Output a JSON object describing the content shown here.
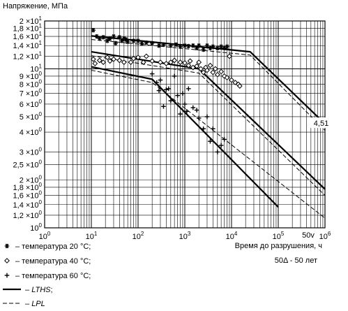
{
  "chart_data": {
    "type": "scatter",
    "ylabel": "Напряжение, МПа",
    "xlabel": "Время до разрушения, ч",
    "x_annotation": "50Δ - 50 лет",
    "x_scale": "log",
    "y_scale": "log",
    "xlim": [
      1,
      1000000
    ],
    "ylim": [
      1,
      20
    ],
    "grid": true,
    "x_ticks": [
      {
        "value": 1,
        "label": "10^0"
      },
      {
        "value": 10,
        "label": "10^1"
      },
      {
        "value": 100,
        "label": "10^2"
      },
      {
        "value": 1000,
        "label": "10^3"
      },
      {
        "value": 10000,
        "label": "10^4"
      },
      {
        "value": 100000,
        "label": "10^5"
      },
      {
        "value": 438000,
        "label": "50v"
      },
      {
        "value": 1000000,
        "label": "10^6"
      }
    ],
    "y_ticks": [
      {
        "value": 20,
        "label": "2 ×10^1"
      },
      {
        "value": 18,
        "label": "1,8 ×10^1"
      },
      {
        "value": 16,
        "label": "1,6 ×10^1"
      },
      {
        "value": 14,
        "label": "1,4 ×10^1"
      },
      {
        "value": 12,
        "label": "1,2 ×10^1"
      },
      {
        "value": 10,
        "label": "10^1"
      },
      {
        "value": 9,
        "label": "9 ×10^0"
      },
      {
        "value": 8,
        "label": "8 ×10^0"
      },
      {
        "value": 7,
        "label": "7 ×10^0"
      },
      {
        "value": 6,
        "label": "6 ×10^0"
      },
      {
        "value": 5,
        "label": "5 ×10^0"
      },
      {
        "value": 4,
        "label": "4 ×10^0"
      },
      {
        "value": 3,
        "label": "3 ×10^0"
      },
      {
        "value": 2.5,
        "label": "2,5 ×10^0"
      },
      {
        "value": 2,
        "label": "2 ×10^0"
      },
      {
        "value": 1.8,
        "label": "1,8 ×10^0"
      },
      {
        "value": 1.6,
        "label": "1,6 ×10^0"
      },
      {
        "value": 1.4,
        "label": "1,4 ×10^0"
      },
      {
        "value": 1.2,
        "label": "1,2 ×10^0"
      },
      {
        "value": 1,
        "label": "10^0"
      }
    ],
    "annotations": [
      {
        "text": "4,51",
        "x": 800000,
        "y": 4.51
      }
    ],
    "legend": [
      {
        "marker": "*",
        "label": "– температура 20 °С;"
      },
      {
        "marker": "◇",
        "label": "– температура 40 °С;"
      },
      {
        "marker": "+",
        "label": "– температура 60 °С;"
      },
      {
        "style": "solid",
        "label": "– LTHS;",
        "italic_part": "LTHS"
      },
      {
        "style": "dashed",
        "label": "– LPL",
        "italic_part": "LPL"
      }
    ],
    "series": [
      {
        "name": "температура 20 °С",
        "marker": "star",
        "points": [
          [
            11,
            17.5
          ],
          [
            13,
            16
          ],
          [
            15,
            15.5
          ],
          [
            18,
            15.8
          ],
          [
            22,
            15
          ],
          [
            25,
            15.5
          ],
          [
            30,
            16
          ],
          [
            33,
            14.5
          ],
          [
            40,
            15.8
          ],
          [
            45,
            15
          ],
          [
            50,
            15.5
          ],
          [
            55,
            15.3
          ],
          [
            60,
            14.8
          ],
          [
            80,
            15
          ],
          [
            100,
            15
          ],
          [
            120,
            14.4
          ],
          [
            150,
            14.6
          ],
          [
            200,
            14.5
          ],
          [
            280,
            14
          ],
          [
            350,
            14.2
          ],
          [
            500,
            14
          ],
          [
            650,
            14.2
          ],
          [
            800,
            13.8
          ],
          [
            1000,
            14
          ],
          [
            1200,
            13.9
          ],
          [
            1500,
            14
          ],
          [
            1800,
            13.5
          ],
          [
            2000,
            14
          ],
          [
            2500,
            13.2
          ],
          [
            3000,
            14
          ],
          [
            3500,
            13.5
          ],
          [
            4000,
            13.8
          ],
          [
            5000,
            13.5
          ],
          [
            6000,
            13.8
          ],
          [
            7000,
            13.5
          ],
          [
            8000,
            13.8
          ]
        ]
      },
      {
        "name": "температура 40 °С",
        "marker": "diamond",
        "points": [
          [
            11,
            11.5
          ],
          [
            12,
            10.8
          ],
          [
            15,
            11.3
          ],
          [
            18,
            11
          ],
          [
            22,
            11.8
          ],
          [
            25,
            11.2
          ],
          [
            30,
            11.5
          ],
          [
            40,
            11.3
          ],
          [
            50,
            11
          ],
          [
            70,
            11
          ],
          [
            80,
            11.6
          ],
          [
            100,
            11.8
          ],
          [
            130,
            11
          ],
          [
            150,
            12
          ],
          [
            200,
            11.2
          ],
          [
            300,
            11
          ],
          [
            400,
            10.8
          ],
          [
            500,
            11
          ],
          [
            600,
            11.3
          ],
          [
            800,
            11
          ],
          [
            1000,
            10.9
          ],
          [
            1200,
            10.5
          ],
          [
            1300,
            11.2
          ],
          [
            1500,
            10.2
          ],
          [
            1800,
            10.4
          ],
          [
            2000,
            11
          ],
          [
            2200,
            10
          ],
          [
            2500,
            9.5
          ],
          [
            2800,
            10.2
          ],
          [
            3000,
            9.8
          ],
          [
            3500,
            10.5
          ],
          [
            4000,
            9.5
          ],
          [
            4500,
            10
          ],
          [
            5000,
            9.2
          ],
          [
            6000,
            9.6
          ],
          [
            7000,
            9
          ],
          [
            8000,
            8.8
          ],
          [
            9000,
            12
          ],
          [
            10000,
            8.5
          ],
          [
            12000,
            8.2
          ],
          [
            14000,
            8
          ],
          [
            15000,
            7.8
          ]
        ]
      },
      {
        "name": "температура 60 °С",
        "marker": "plus",
        "points": [
          [
            200,
            9.3
          ],
          [
            250,
            8.2
          ],
          [
            280,
            7.3
          ],
          [
            300,
            8.5
          ],
          [
            350,
            5.8
          ],
          [
            400,
            7.4
          ],
          [
            450,
            7.5
          ],
          [
            500,
            6.3
          ],
          [
            600,
            9
          ],
          [
            700,
            6.8
          ],
          [
            800,
            5.2
          ],
          [
            900,
            7
          ],
          [
            1000,
            6
          ],
          [
            1100,
            5.4
          ],
          [
            1200,
            7.5
          ],
          [
            1500,
            5.7
          ],
          [
            1800,
            5.5
          ],
          [
            2000,
            4.9
          ],
          [
            2500,
            4.2
          ],
          [
            3000,
            5
          ],
          [
            3500,
            3.5
          ],
          [
            4000,
            4.2
          ],
          [
            5000,
            3
          ],
          [
            6000,
            3.3
          ],
          [
            7000,
            3.6
          ]
        ]
      }
    ],
    "lines": [
      {
        "name": "LTHS",
        "style": "solid",
        "points": [
          [
            10,
            16.1
          ],
          [
            25000,
            12.8
          ],
          [
            1000000,
            4.51
          ]
        ]
      },
      {
        "name": "LTHS",
        "style": "solid",
        "points": [
          [
            10,
            12.8
          ],
          [
            2000,
            10
          ],
          [
            1000000,
            1.75
          ]
        ]
      },
      {
        "name": "LTHS",
        "style": "solid",
        "points": [
          [
            10,
            10.3
          ],
          [
            200,
            8.6
          ],
          [
            100000,
            1.35
          ]
        ]
      },
      {
        "name": "LPL",
        "style": "dashed",
        "points": [
          [
            10,
            15.3
          ],
          [
            25000,
            12.2
          ],
          [
            1000000,
            4.1
          ]
        ]
      },
      {
        "name": "LPL",
        "style": "dashed",
        "points": [
          [
            10,
            12.1
          ],
          [
            2000,
            9.4
          ],
          [
            1000000,
            1.6
          ]
        ]
      },
      {
        "name": "LPL",
        "style": "dashed",
        "points": [
          [
            10,
            9.8
          ],
          [
            200,
            8.2
          ],
          [
            1000000,
            1.15
          ]
        ]
      }
    ]
  }
}
